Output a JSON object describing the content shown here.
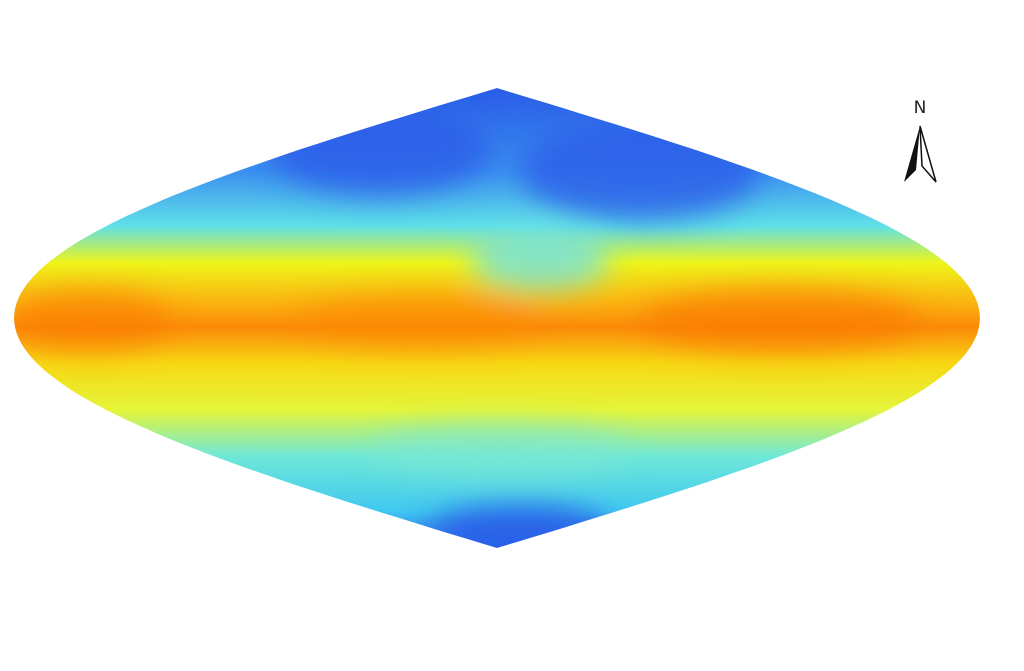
{
  "map": {
    "projection": "sinusoidal",
    "colors": {
      "low": "#2a5ce8",
      "mid_low": "#3fd0f0",
      "mid": "#f5f514",
      "high": "#fb8a08"
    }
  },
  "north_arrow": {
    "label": "N",
    "icon": "north-arrow-icon"
  }
}
